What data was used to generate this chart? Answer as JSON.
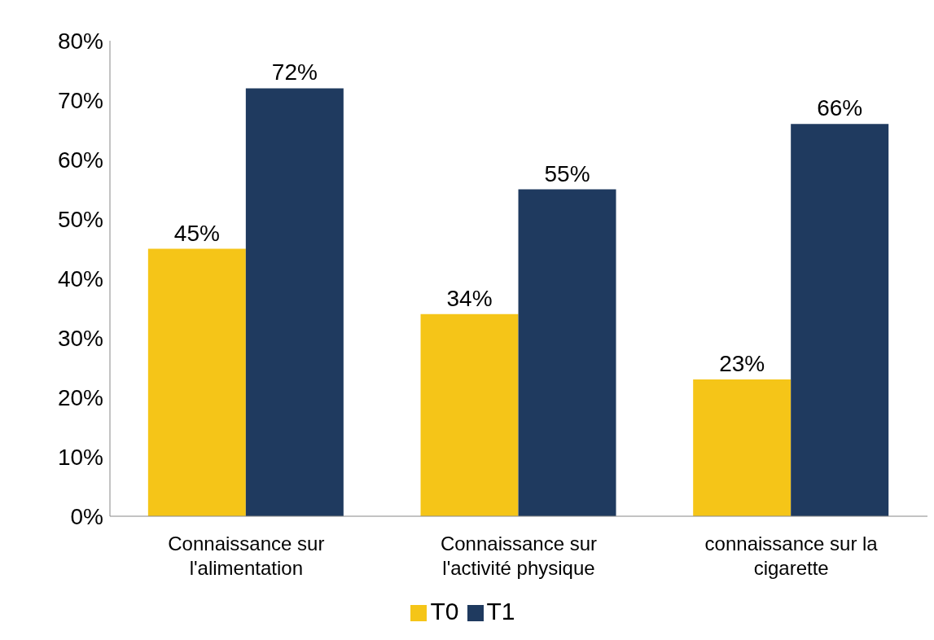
{
  "chart_data": {
    "type": "bar",
    "categories": [
      "Connaissance sur l'alimentation",
      "Connaissance sur l'activité physique",
      "connaissance sur la cigarette"
    ],
    "series": [
      {
        "name": "T0",
        "color": "#f5c518",
        "values": [
          45,
          34,
          23
        ],
        "value_labels": [
          "45%",
          "34%",
          "23%"
        ]
      },
      {
        "name": "T1",
        "color": "#1f3a5f",
        "values": [
          72,
          55,
          66
        ],
        "value_labels": [
          "72%",
          "55%",
          "66%"
        ]
      }
    ],
    "ylim": [
      0,
      80
    ],
    "yticks": [
      {
        "value": 0,
        "label": "0%"
      },
      {
        "value": 10,
        "label": "10%"
      },
      {
        "value": 20,
        "label": "20%"
      },
      {
        "value": 30,
        "label": "30%"
      },
      {
        "value": 40,
        "label": "40%"
      },
      {
        "value": 50,
        "label": "50%"
      },
      {
        "value": 60,
        "label": "60%"
      },
      {
        "value": 70,
        "label": "70%"
      },
      {
        "value": 80,
        "label": "80%"
      }
    ],
    "grid": false,
    "legend": "bottom"
  }
}
